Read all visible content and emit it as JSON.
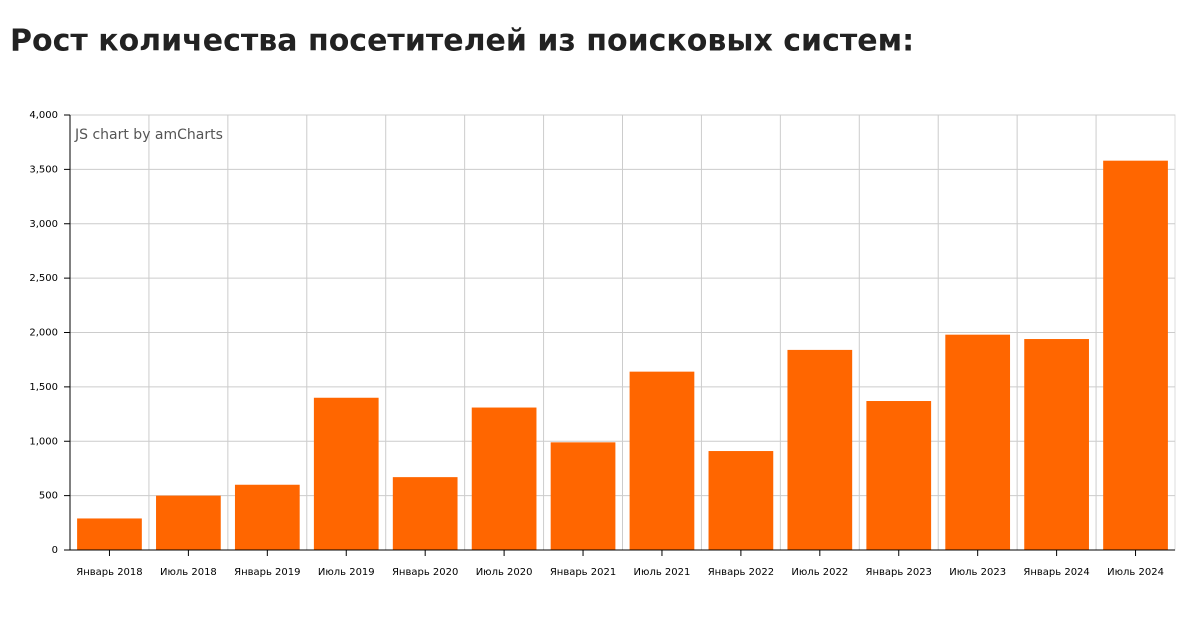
{
  "chart_data": {
    "type": "bar",
    "title": "Рост количества посетителей из поисковых систем:",
    "watermark": "JS chart by amCharts",
    "categories": [
      "Январь 2018",
      "Июль 2018",
      "Январь 2019",
      "Июль 2019",
      "Январь 2020",
      "Июль 2020",
      "Январь 2021",
      "Июль 2021",
      "Январь 2022",
      "Июль 2022",
      "Январь 2023",
      "Июль 2023",
      "Январь 2024",
      "Июль 2024"
    ],
    "values": [
      290,
      500,
      600,
      1400,
      670,
      1310,
      990,
      1640,
      910,
      1840,
      1370,
      1980,
      1940,
      3580
    ],
    "color": "#ff6600",
    "ylim": [
      0,
      4000
    ],
    "yticks": [
      0,
      500,
      {
        "value": 1000,
        "label": "1,000"
      },
      {
        "value": 1500,
        "label": "1,500"
      },
      {
        "value": 2000,
        "label": "2,000"
      },
      {
        "value": 2500,
        "label": "2,500"
      },
      {
        "value": 3000,
        "label": "3,000"
      },
      {
        "value": 3500,
        "label": "3,500"
      },
      {
        "value": 4000,
        "label": "4,000"
      }
    ],
    "grid": true
  }
}
